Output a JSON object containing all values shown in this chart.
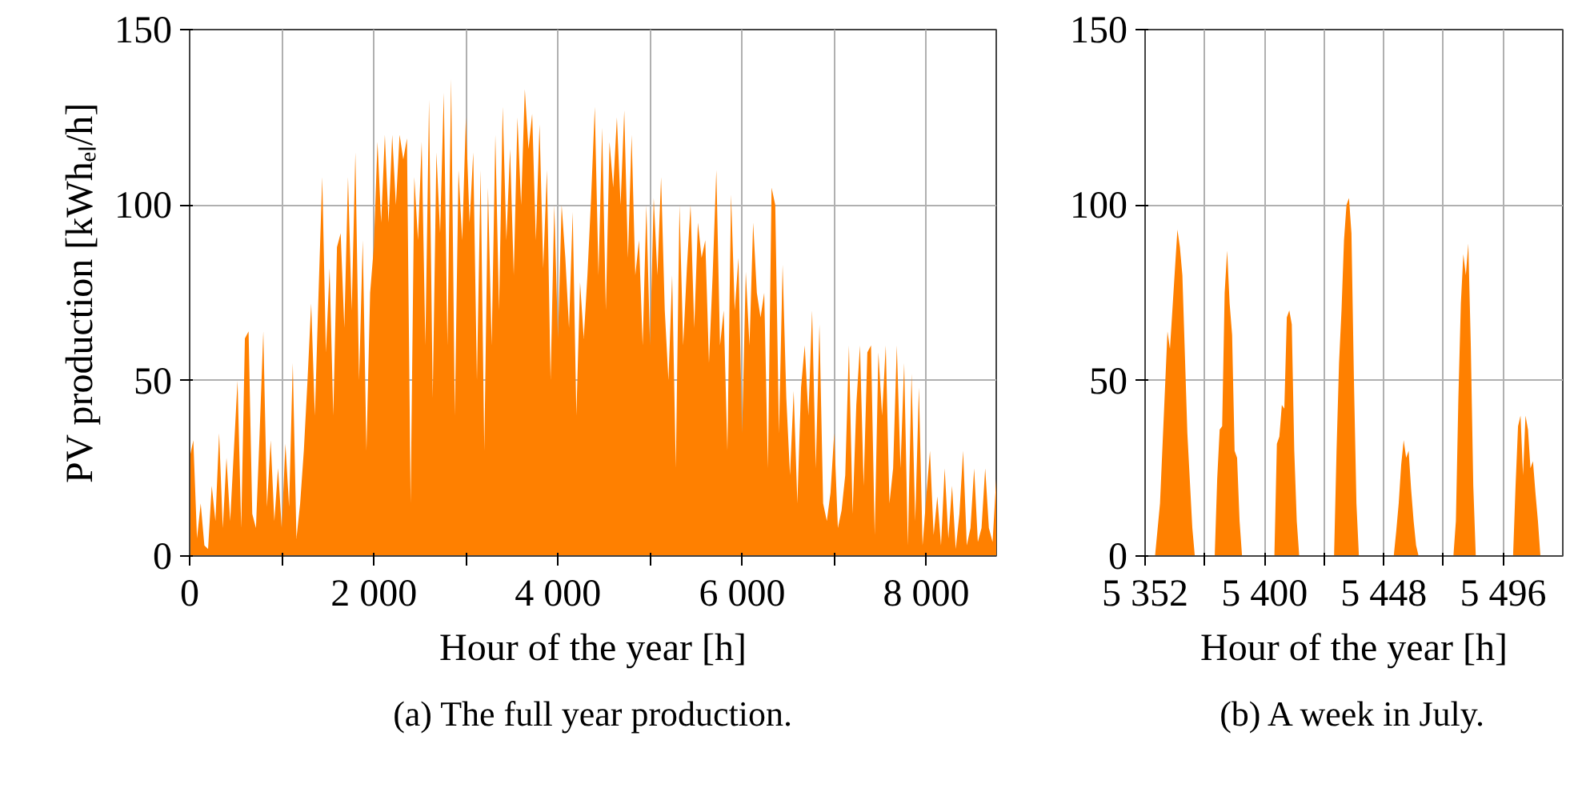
{
  "chart_data": [
    {
      "type": "area",
      "xlabel": "Hour of the year [h]",
      "ylabel": "PV production [kWhₑₗ/h]",
      "annotations": [
        "(a) The full year production."
      ],
      "xlim": [
        0,
        8760
      ],
      "ylim": [
        0,
        150
      ],
      "xticks": [
        0,
        {
          "value": 1000,
          "label": null
        },
        {
          "value": 2000,
          "label": "2 000"
        },
        {
          "value": 3000,
          "label": null
        },
        {
          "value": 4000,
          "label": "4 000"
        },
        {
          "value": 5000,
          "label": null
        },
        {
          "value": 6000,
          "label": "6 000"
        },
        {
          "value": 7000,
          "label": null
        },
        {
          "value": 8000,
          "label": "8 000"
        }
      ],
      "yticks": [
        0,
        50,
        100,
        150
      ],
      "grid": true,
      "series": [
        {
          "color": "#ff8000",
          "x": [
            0,
            40,
            80,
            120,
            160,
            200,
            240,
            280,
            320,
            360,
            400,
            440,
            480,
            520,
            560,
            600,
            640,
            680,
            720,
            760,
            800,
            840,
            880,
            920,
            960,
            1000,
            1040,
            1080,
            1120,
            1160,
            1200,
            1240,
            1280,
            1320,
            1360,
            1400,
            1440,
            1480,
            1520,
            1560,
            1600,
            1640,
            1680,
            1720,
            1760,
            1800,
            1840,
            1880,
            1920,
            1960,
            2000,
            2040,
            2080,
            2120,
            2160,
            2200,
            2240,
            2280,
            2320,
            2360,
            2400,
            2440,
            2480,
            2520,
            2560,
            2600,
            2640,
            2680,
            2720,
            2760,
            2800,
            2840,
            2880,
            2920,
            2960,
            3000,
            3040,
            3080,
            3120,
            3160,
            3200,
            3240,
            3280,
            3320,
            3360,
            3400,
            3440,
            3480,
            3520,
            3560,
            3600,
            3640,
            3680,
            3720,
            3760,
            3800,
            3840,
            3880,
            3920,
            3960,
            4000,
            4040,
            4080,
            4120,
            4160,
            4200,
            4240,
            4280,
            4320,
            4360,
            4400,
            4440,
            4480,
            4520,
            4560,
            4600,
            4640,
            4680,
            4720,
            4760,
            4800,
            4840,
            4880,
            4920,
            4960,
            5000,
            5040,
            5080,
            5120,
            5160,
            5200,
            5240,
            5280,
            5320,
            5360,
            5400,
            5440,
            5480,
            5520,
            5560,
            5600,
            5640,
            5680,
            5720,
            5760,
            5800,
            5840,
            5880,
            5920,
            5960,
            6000,
            6040,
            6080,
            6120,
            6160,
            6200,
            6240,
            6280,
            6320,
            6360,
            6400,
            6440,
            6480,
            6520,
            6560,
            6600,
            6640,
            6680,
            6720,
            6760,
            6800,
            6840,
            6880,
            6920,
            6960,
            7000,
            7040,
            7080,
            7120,
            7160,
            7200,
            7240,
            7280,
            7320,
            7360,
            7400,
            7440,
            7480,
            7520,
            7560,
            7600,
            7640,
            7680,
            7720,
            7760,
            7800,
            7840,
            7880,
            7920,
            7960,
            8000,
            8040,
            8080,
            8120,
            8160,
            8200,
            8240,
            8280,
            8320,
            8360,
            8400,
            8440,
            8480,
            8520,
            8560,
            8600,
            8640,
            8680,
            8720,
            8760
          ],
          "values": [
            28,
            33,
            5,
            15,
            3,
            2,
            20,
            10,
            35,
            8,
            28,
            10,
            30,
            50,
            8,
            62,
            64,
            12,
            8,
            35,
            64,
            14,
            33,
            10,
            25,
            8,
            32,
            14,
            55,
            5,
            15,
            30,
            50,
            72,
            40,
            75,
            108,
            58,
            82,
            40,
            88,
            92,
            65,
            108,
            70,
            115,
            50,
            90,
            30,
            75,
            88,
            118,
            95,
            120,
            95,
            120,
            100,
            120,
            113,
            119,
            15,
            108,
            90,
            118,
            60,
            130,
            45,
            115,
            92,
            132,
            60,
            136,
            40,
            110,
            90,
            125,
            95,
            115,
            50,
            110,
            30,
            105,
            60,
            120,
            70,
            128,
            90,
            116,
            80,
            125,
            100,
            133,
            116,
            126,
            90,
            123,
            82,
            110,
            50,
            100,
            62,
            100,
            85,
            65,
            98,
            40,
            78,
            62,
            80,
            102,
            128,
            80,
            122,
            70,
            118,
            105,
            125,
            100,
            127,
            85,
            120,
            80,
            90,
            60,
            100,
            60,
            102,
            80,
            108,
            70,
            50,
            80,
            25,
            100,
            60,
            82,
            100,
            65,
            95,
            85,
            90,
            55,
            80,
            110,
            60,
            70,
            30,
            103,
            70,
            85,
            35,
            81,
            60,
            95,
            75,
            68,
            75,
            25,
            105,
            100,
            35,
            83,
            45,
            23,
            47,
            15,
            48,
            60,
            40,
            70,
            25,
            66,
            15,
            10,
            18,
            35,
            8,
            13,
            23,
            60,
            12,
            43,
            60,
            20,
            58,
            60,
            6,
            58,
            40,
            60,
            15,
            25,
            60,
            25,
            55,
            3,
            52,
            10,
            48,
            3,
            17,
            30,
            6,
            17,
            3,
            25,
            5,
            20,
            2,
            12,
            30,
            3,
            8,
            25,
            4,
            8,
            25,
            8,
            4,
            22
          ]
        }
      ]
    },
    {
      "type": "area",
      "xlabel": "Hour of the year [h]",
      "annotations": [
        "(b) A week in July."
      ],
      "xlim": [
        5352,
        5520
      ],
      "ylim": [
        0,
        150
      ],
      "xticks": [
        {
          "value": 5352,
          "label": "5 352"
        },
        {
          "value": 5376,
          "label": null
        },
        {
          "value": 5400,
          "label": "5 400"
        },
        {
          "value": 5424,
          "label": null
        },
        {
          "value": 5448,
          "label": "5 448"
        },
        {
          "value": 5472,
          "label": null
        },
        {
          "value": 5496,
          "label": "5 496"
        }
      ],
      "yticks": [
        0,
        50,
        100,
        150
      ],
      "grid": true,
      "series": [
        {
          "color": "#ff8000",
          "x": [
            5352,
            5356,
            5358,
            5361,
            5362,
            5365,
            5366,
            5367,
            5369,
            5371,
            5372,
            5380,
            5381,
            5382,
            5383,
            5384,
            5385,
            5386,
            5387,
            5388,
            5389,
            5390,
            5391,
            5404,
            5405,
            5406,
            5407,
            5408,
            5409,
            5410,
            5411,
            5412,
            5413,
            5414,
            5428,
            5429,
            5430,
            5431,
            5432,
            5433,
            5434,
            5435,
            5436,
            5437,
            5438,
            5452,
            5453,
            5454,
            5455,
            5456,
            5457,
            5458,
            5459,
            5460,
            5461,
            5462,
            5476,
            5477,
            5478,
            5479,
            5480,
            5481,
            5482,
            5483,
            5484,
            5485,
            5500,
            5501,
            5502,
            5503,
            5504,
            5505,
            5506,
            5507,
            5508,
            5509,
            5510,
            5511,
            5520
          ],
          "values": [
            0,
            0,
            15,
            64,
            59,
            93,
            88,
            80,
            35,
            8,
            0,
            0,
            22,
            36,
            37,
            75,
            87,
            72,
            63,
            30,
            28,
            10,
            0,
            0,
            32,
            34,
            43,
            42,
            68,
            70,
            66,
            30,
            10,
            0,
            0,
            30,
            55,
            70,
            90,
            100,
            102,
            92,
            50,
            15,
            0,
            0,
            7,
            15,
            26,
            33,
            28,
            30,
            19,
            10,
            3,
            0,
            0,
            10,
            45,
            72,
            86,
            80,
            89,
            60,
            20,
            0,
            0,
            20,
            37,
            40,
            23,
            40,
            36,
            25,
            27,
            18,
            10,
            0,
            0
          ]
        }
      ]
    }
  ]
}
